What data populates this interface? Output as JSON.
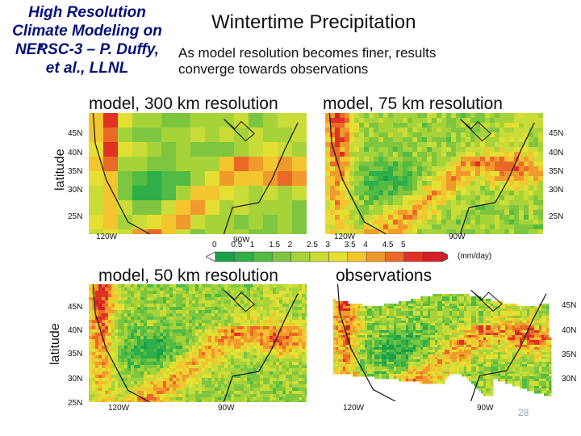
{
  "side_title": [
    "High Resolution",
    "Climate Modeling on",
    "NERSC-3 – P. Duffy,",
    "et al., LLNL"
  ],
  "main_title": "Wintertime Precipitation",
  "subtitle": "As model resolution becomes finer, results converge towards observations",
  "panels": {
    "p300": {
      "title": "model, 300 km resolution",
      "ylabel": "latitude",
      "lat_ticks": [
        "45N",
        "40N",
        "35N",
        "30N",
        "25N"
      ],
      "lon_ticks": [
        "120W",
        "90W"
      ]
    },
    "p75": {
      "title": "model, 75 km resolution",
      "lat_ticks": [
        "45N",
        "40N",
        "35N",
        "30N",
        "25N"
      ],
      "lon_ticks": [
        "120W",
        "90W"
      ]
    },
    "p50": {
      "title": "model, 50 km resolution",
      "ylabel": "latitude",
      "lat_ticks": [
        "45N",
        "40N",
        "35N",
        "30N",
        "25N"
      ],
      "lon_ticks": [
        "120W",
        "90W"
      ]
    },
    "obs": {
      "title": "observations",
      "lat_ticks": [
        "45N",
        "40N",
        "35N",
        "30N"
      ],
      "lon_ticks": [
        "120W",
        "90W"
      ]
    }
  },
  "colorbar": {
    "labels": [
      "0",
      "0.5",
      "1",
      "1.5",
      "2",
      "2.5",
      "3",
      "3.5",
      "4",
      "4.5",
      "5"
    ],
    "units": "(mm/day)",
    "colors": [
      "#19a04a",
      "#2fae4a",
      "#52bb43",
      "#7ec63f",
      "#a7d33a",
      "#cadc37",
      "#e6df33",
      "#f3c52f",
      "#f09a2c",
      "#e96a27",
      "#df3124",
      "#d41f28"
    ]
  },
  "page_number": "28"
}
